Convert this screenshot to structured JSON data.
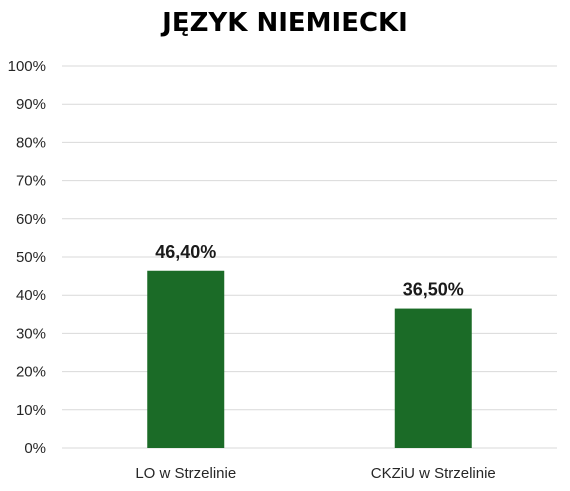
{
  "chart_data": {
    "type": "bar",
    "title": "JĘZYK NIEMIECKI",
    "categories": [
      "LO w Strzelinie",
      "CKZiU w Strzelinie"
    ],
    "values": [
      46.4,
      36.5
    ],
    "data_labels": [
      "46,40%",
      "36,50%"
    ],
    "ylim": [
      0,
      100
    ],
    "yticks": [
      "0%",
      "10%",
      "20%",
      "30%",
      "40%",
      "50%",
      "60%",
      "70%",
      "80%",
      "90%",
      "100%"
    ],
    "xlabel": "",
    "ylabel": "",
    "grid": true,
    "legend": "none",
    "bar_color": "#1b6b27"
  }
}
